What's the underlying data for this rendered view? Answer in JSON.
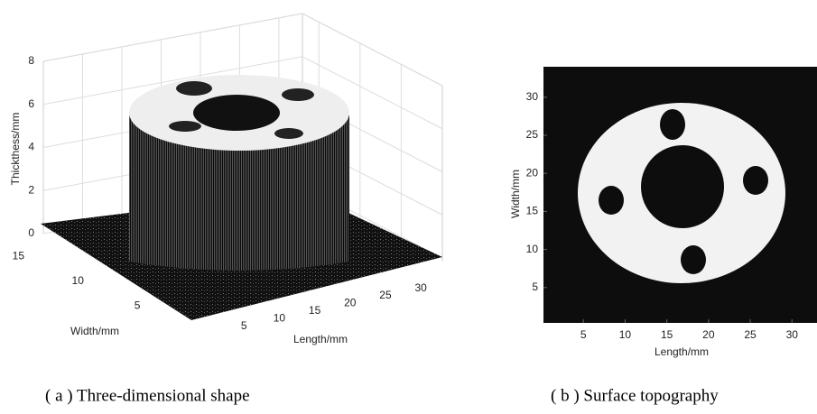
{
  "chart_data": [
    {
      "type": "surface3d",
      "zlabel": "Thickthess/mm",
      "ylabel": "Width/mm",
      "xlabel": "Length/mm",
      "caption": "( a ) Three-dimensional shape",
      "zlim": [
        0,
        8
      ],
      "zticks": [
        0,
        2,
        4,
        6,
        8
      ],
      "xlim": [
        0,
        33
      ],
      "xticks": [
        5,
        10,
        15,
        20,
        25,
        30
      ],
      "ylim": [
        0,
        17
      ],
      "yticks": [
        5,
        10,
        15
      ],
      "grid": true
    },
    {
      "type": "image",
      "ylabel": "Width/mm",
      "xlabel": "Length/mm",
      "caption": "( b ) Surface topography",
      "xlim": [
        0,
        33
      ],
      "xticks": [
        5,
        10,
        15,
        20,
        25,
        30
      ],
      "ylim": [
        0,
        34
      ],
      "yticks": [
        5,
        10,
        15,
        20,
        25,
        30
      ]
    }
  ]
}
